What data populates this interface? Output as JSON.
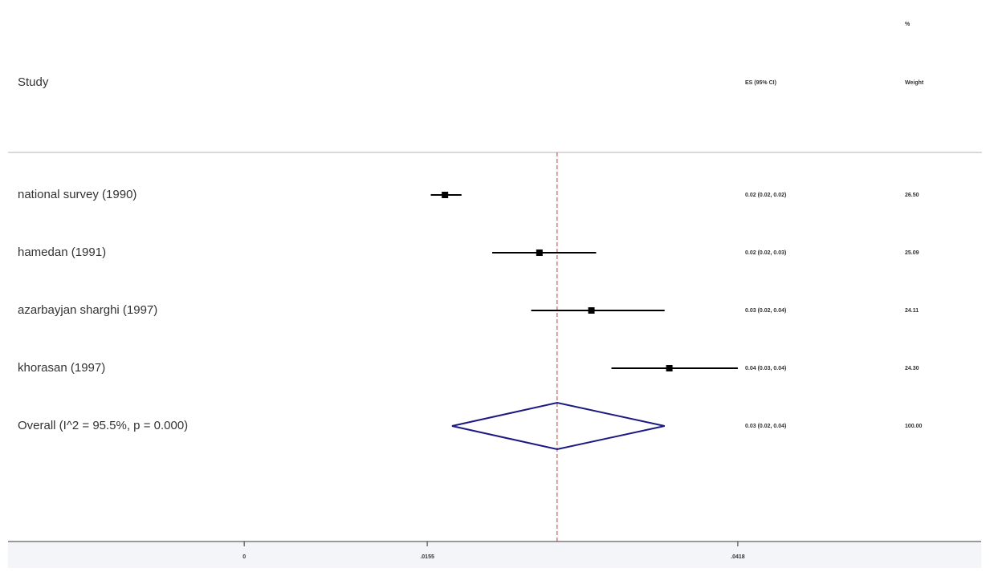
{
  "chart_data": {
    "type": "forest",
    "study_header": "Study",
    "es_header": "ES (95% CI)",
    "weight_header_top": "%",
    "weight_header": "Weight",
    "studies": [
      "national survey (1990)",
      "hamedan (1991)",
      "azarbayjan sharghi (1997)",
      "khorasan (1997)"
    ],
    "effects": [
      0.017,
      0.025,
      0.0294,
      0.036
    ],
    "ci_lower": [
      0.0158,
      0.021,
      0.0243,
      0.0311
    ],
    "ci_upper": [
      0.0184,
      0.0298,
      0.0356,
      0.0418
    ],
    "es_labels": [
      "0.02 (0.02, 0.02)",
      "0.02 (0.02, 0.03)",
      "0.03 (0.02, 0.04)",
      "0.04 (0.03, 0.04)"
    ],
    "weights": [
      "26.50",
      "25.09",
      "24.11",
      "24.30"
    ],
    "overall": {
      "label": "Overall  (I^2 = 95.5%, p = 0.000)",
      "effect": 0.0265,
      "ci_lower": 0.0176,
      "ci_upper": 0.0356,
      "es_label": "0.03 (0.02, 0.04)",
      "weight": "100.00"
    },
    "xlim": [
      -0.02,
      0.062
    ],
    "xticks": [
      0,
      {
        "value": 0.0155,
        "label": ".0155"
      },
      {
        "value": 0.0418,
        "label": ".0418"
      }
    ],
    "point_color": "#000000",
    "diamond_color": "#1a1a80",
    "line_color": "#c0392b"
  }
}
